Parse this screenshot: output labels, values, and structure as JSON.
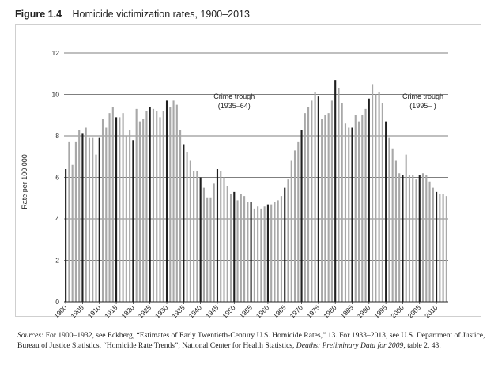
{
  "figure": {
    "label": "Figure 1.4",
    "title": "Homicide victimization rates, 1900–2013"
  },
  "notes": {
    "sources_label": "Sources:",
    "text_1": " For 1900–1932, see Eckberg, “Estimates of Early Twentieth-Century U.S. Homicide Rates,” 13. For 1933–2013, see U.S. Department of Justice, Bureau of Justice Statistics, “Homicide Rate Trends”; National Center for Health Statistics, ",
    "italic_title": "Deaths: Preliminary Data for 2009",
    "text_2": ", table 2, 43."
  },
  "chart_data": {
    "type": "bar",
    "title": "",
    "xlabel": "",
    "ylabel": "Rate per 100,000",
    "ylim": [
      0,
      12
    ],
    "yticks": [
      0,
      2,
      4,
      6,
      8,
      10,
      12
    ],
    "grid": "horizontal",
    "xtick_labels": [
      "1900",
      "1905",
      "1910",
      "1915",
      "1920",
      "1925",
      "1930",
      "1935",
      "1940",
      "1945",
      "1950",
      "1955",
      "1960",
      "1965",
      "1970",
      "1975",
      "1980",
      "1985",
      "1990",
      "1995",
      "2000",
      "2005",
      "2010"
    ],
    "years": [
      1900,
      1901,
      1902,
      1903,
      1904,
      1905,
      1906,
      1907,
      1908,
      1909,
      1910,
      1911,
      1912,
      1913,
      1914,
      1915,
      1916,
      1917,
      1918,
      1919,
      1920,
      1921,
      1922,
      1923,
      1924,
      1925,
      1926,
      1927,
      1928,
      1929,
      1930,
      1931,
      1932,
      1933,
      1934,
      1935,
      1936,
      1937,
      1938,
      1939,
      1940,
      1941,
      1942,
      1943,
      1944,
      1945,
      1946,
      1947,
      1948,
      1949,
      1950,
      1951,
      1952,
      1953,
      1954,
      1955,
      1956,
      1957,
      1958,
      1959,
      1960,
      1961,
      1962,
      1963,
      1964,
      1965,
      1966,
      1967,
      1968,
      1969,
      1970,
      1971,
      1972,
      1973,
      1974,
      1975,
      1976,
      1977,
      1978,
      1979,
      1980,
      1981,
      1982,
      1983,
      1984,
      1985,
      1986,
      1987,
      1988,
      1989,
      1990,
      1991,
      1992,
      1993,
      1994,
      1995,
      1996,
      1997,
      1998,
      1999,
      2000,
      2001,
      2002,
      2003,
      2004,
      2005,
      2006,
      2007,
      2008,
      2009,
      2010,
      2011,
      2012,
      2013
    ],
    "values": [
      6.4,
      7.7,
      6.6,
      7.7,
      8.3,
      8.1,
      8.4,
      7.9,
      7.9,
      7.1,
      7.9,
      8.8,
      8.4,
      9.1,
      9.4,
      8.9,
      8.9,
      9.1,
      8.0,
      8.3,
      7.8,
      9.3,
      8.7,
      8.8,
      9.2,
      9.4,
      9.3,
      9.2,
      8.9,
      9.2,
      9.7,
      9.4,
      9.7,
      9.5,
      8.3,
      7.6,
      7.2,
      6.8,
      6.3,
      6.3,
      6.0,
      5.5,
      5.0,
      5.0,
      5.7,
      6.4,
      6.3,
      6.0,
      5.6,
      5.2,
      5.3,
      4.9,
      5.2,
      5.1,
      4.8,
      4.8,
      4.5,
      4.6,
      4.5,
      4.6,
      4.7,
      4.7,
      4.8,
      4.9,
      5.1,
      5.5,
      5.9,
      6.8,
      7.3,
      7.7,
      8.3,
      9.1,
      9.4,
      9.7,
      10.1,
      9.9,
      8.8,
      9.0,
      9.1,
      9.7,
      10.7,
      10.3,
      9.6,
      8.6,
      8.4,
      8.4,
      9.0,
      8.7,
      9.0,
      9.3,
      9.8,
      10.5,
      10.0,
      10.1,
      9.6,
      8.7,
      7.9,
      7.4,
      6.8,
      6.2,
      6.1,
      7.1,
      6.1,
      6.1,
      5.9,
      6.1,
      6.2,
      6.1,
      5.8,
      5.5,
      5.3,
      5.2,
      5.2,
      5.1
    ],
    "highlight_years": [
      1900,
      1905,
      1910,
      1915,
      1920,
      1925,
      1930,
      1935,
      1940,
      1945,
      1950,
      1955,
      1960,
      1965,
      1970,
      1975,
      1980,
      1985,
      1990,
      1995,
      2000,
      2005,
      2010
    ],
    "annotations": [
      {
        "line1": "Crime trough",
        "line2": "(1935–64)",
        "x": 1950,
        "y": 9.8
      },
      {
        "line1": "Crime trough",
        "line2": "(1995– )",
        "x": 2006,
        "y": 9.8
      }
    ],
    "colors": {
      "bar": "#a8a8a8",
      "bar_highlight": "#1f1f1f",
      "grid": "#555555"
    }
  }
}
